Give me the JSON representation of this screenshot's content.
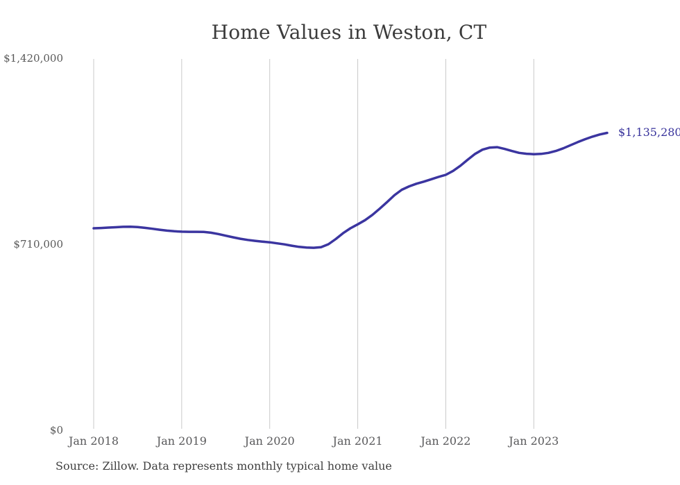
{
  "title": "Home Values in Weston, CT",
  "source_note": "Source: Zillow. Data represents monthly typical home value",
  "latest_value_label": "$1,135,280",
  "colors": {
    "background": "#ffffff",
    "line": "#3b35a0",
    "grid": "#c9c9c9",
    "title_text": "#3b3b3b",
    "axis_text": "#595959",
    "value_label_text": "#37329b",
    "source_text": "#3f3f3f"
  },
  "y_axis": {
    "ticks": [
      {
        "value": 0,
        "label": "$0"
      },
      {
        "value": 710000,
        "label": "$710,000"
      },
      {
        "value": 1420000,
        "label": "$1,420,000"
      }
    ]
  },
  "x_axis": {
    "ticks": [
      {
        "month_index": 0,
        "label": "Jan 2018"
      },
      {
        "month_index": 12,
        "label": "Jan 2019"
      },
      {
        "month_index": 24,
        "label": "Jan 2020"
      },
      {
        "month_index": 36,
        "label": "Jan 2021"
      },
      {
        "month_index": 48,
        "label": "Jan 2022"
      },
      {
        "month_index": 60,
        "label": "Jan 2023"
      }
    ]
  },
  "chart_data": {
    "type": "line",
    "title": "Home Values in Weston, CT",
    "xlabel": "",
    "ylabel": "",
    "x_start": "Jan 2018",
    "x_end": "Nov 2023",
    "x_interval": "monthly",
    "ylim": [
      0,
      1420000
    ],
    "y_tick_values": [
      0,
      710000,
      1420000
    ],
    "grid": "vertical gridlines at each January, no horizontal gridlines, no axis lines",
    "legend": "none",
    "latest_value": 1135280,
    "series": [
      {
        "name": "Typical home value (USD)",
        "values": [
          771000,
          772000,
          773500,
          775000,
          776500,
          777000,
          775500,
          772500,
          769000,
          765500,
          762000,
          759500,
          758000,
          757500,
          757500,
          757000,
          754000,
          749000,
          742500,
          736500,
          731000,
          726500,
          723000,
          720000,
          717500,
          713500,
          709500,
          704500,
          700000,
          697500,
          696500,
          699000,
          710000,
          730000,
          752000,
          771000,
          786000,
          802000,
          822000,
          846000,
          871000,
          897000,
          918000,
          931000,
          941000,
          949000,
          958000,
          967000,
          975000,
          990000,
          1010000,
          1033000,
          1055000,
          1071000,
          1079000,
          1080500,
          1074000,
          1066000,
          1059000,
          1055500,
          1054000,
          1055000,
          1059000,
          1066000,
          1076000,
          1088000,
          1100000,
          1111000,
          1121000,
          1129000,
          1135280
        ]
      }
    ]
  }
}
